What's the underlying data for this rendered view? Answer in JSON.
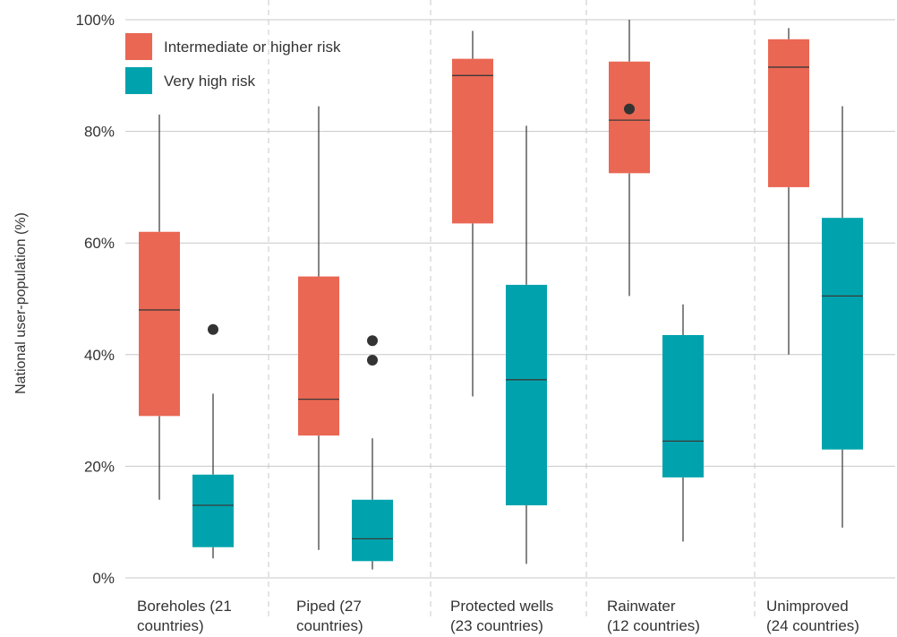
{
  "chart_data": {
    "type": "box",
    "ylabel": "National user-population (%)",
    "ylim": [
      0,
      100
    ],
    "yticks": [
      "0%",
      "20%",
      "40%",
      "60%",
      "80%",
      "100%"
    ],
    "ytick_values": [
      0,
      20,
      40,
      60,
      80,
      100
    ],
    "grid": "horizontal",
    "legend_position": "top-left",
    "categories": [
      [
        "Boreholes (21",
        "countries)"
      ],
      [
        "Piped (27",
        "countries)"
      ],
      [
        "Protected wells",
        "(23 countries)"
      ],
      [
        "Rainwater",
        "(12 countries)"
      ],
      [
        "Unimproved",
        "(24 countries)"
      ]
    ],
    "series": [
      {
        "name": "Intermediate or higher risk",
        "color": "#EA6753",
        "boxes": [
          {
            "whisker_low": 14,
            "q1": 29,
            "median": 48,
            "q3": 62,
            "whisker_high": 83,
            "outliers": []
          },
          {
            "whisker_low": 5,
            "q1": 25.5,
            "median": 32,
            "q3": 54,
            "whisker_high": 84.5,
            "outliers": []
          },
          {
            "whisker_low": 32.5,
            "q1": 63.5,
            "median": 90,
            "q3": 93,
            "whisker_high": 98,
            "outliers": []
          },
          {
            "whisker_low": 50.5,
            "q1": 72.5,
            "median": 82,
            "q3": 92.5,
            "whisker_high": 100,
            "outliers": [
              84
            ]
          },
          {
            "whisker_low": 40,
            "q1": 70,
            "median": 91.5,
            "q3": 96.5,
            "whisker_high": 98.5,
            "outliers": []
          }
        ]
      },
      {
        "name": "Very high risk",
        "color": "#00A3AD",
        "boxes": [
          {
            "whisker_low": 3.5,
            "q1": 5.5,
            "median": 13,
            "q3": 18.5,
            "whisker_high": 33,
            "outliers": [
              44.5
            ]
          },
          {
            "whisker_low": 1.5,
            "q1": 3,
            "median": 7,
            "q3": 14,
            "whisker_high": 25,
            "outliers": [
              42.5,
              39
            ]
          },
          {
            "whisker_low": 2.5,
            "q1": 13,
            "median": 35.5,
            "q3": 52.5,
            "whisker_high": 81,
            "outliers": []
          },
          {
            "whisker_low": 6.5,
            "q1": 18,
            "median": 24.5,
            "q3": 43.5,
            "whisker_high": 49,
            "outliers": []
          },
          {
            "whisker_low": 9,
            "q1": 23,
            "median": 50.5,
            "q3": 64.5,
            "whisker_high": 84.5,
            "outliers": []
          }
        ]
      }
    ]
  },
  "colors": {
    "median_line": "#3a3a3a",
    "whisker": "#333333",
    "outlier": "#333333",
    "gridline": "#c8c8c8",
    "separator": "#c8c8c8"
  }
}
